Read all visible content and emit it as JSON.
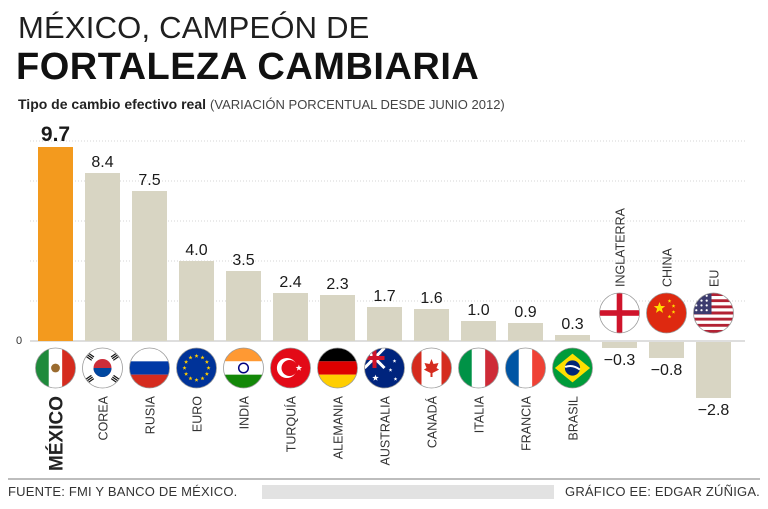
{
  "header": {
    "kicker": "MÉXICO, CAMPEÓN DE",
    "headline": "FORTALEZA CAMBIARIA",
    "subtitle_bold": "Tipo de cambio efectivo real",
    "subtitle_note": "(VARIACIÓN PORCENTUAL DESDE JUNIO 2012)"
  },
  "chart_data": {
    "type": "bar",
    "title": "FORTALEZA CAMBIARIA",
    "ylabel": "Tipo de cambio efectivo real (variación porcentual desde junio 2012)",
    "xlabel": "",
    "zero_label": "0",
    "ylim": [
      -3,
      10
    ],
    "categories": [
      "MÉXICO",
      "COREA",
      "RUSIA",
      "EURO",
      "INDIA",
      "TURQUÍA",
      "ALEMANIA",
      "AUSTRALIA",
      "CANADÁ",
      "ITALIA",
      "FRANCIA",
      "BRASIL",
      "INGLATERRA",
      "CHINA",
      "EU"
    ],
    "values": [
      9.7,
      8.4,
      7.5,
      4.0,
      3.5,
      2.4,
      2.3,
      1.7,
      1.6,
      1.0,
      0.9,
      0.3,
      -0.3,
      -0.8,
      -2.8
    ],
    "value_labels": [
      "9.7",
      "8.4",
      "7.5",
      "4.0",
      "3.5",
      "2.4",
      "2.3",
      "1.7",
      "1.6",
      "1.0",
      "0.9",
      "0.3",
      "−0.3",
      "−0.8",
      "−2.8"
    ],
    "highlight": "MÉXICO",
    "colors": {
      "highlight": "#f39a1e",
      "bar": "#d8d5c3",
      "grid": "#d4d4d4",
      "text": "#1a1a1a"
    },
    "flag_icons": [
      "mexico-flag-icon",
      "korea-flag-icon",
      "russia-flag-icon",
      "eu-flag-icon",
      "india-flag-icon",
      "turkey-flag-icon",
      "germany-flag-icon",
      "australia-flag-icon",
      "canada-flag-icon",
      "italy-flag-icon",
      "france-flag-icon",
      "brazil-flag-icon",
      "england-flag-icon",
      "china-flag-icon",
      "usa-flag-icon"
    ]
  },
  "footer": {
    "source": "FUENTE: FMI Y BANCO DE MÉXICO.",
    "credit": "GRÁFICO EE: EDGAR ZÚÑIGA."
  }
}
